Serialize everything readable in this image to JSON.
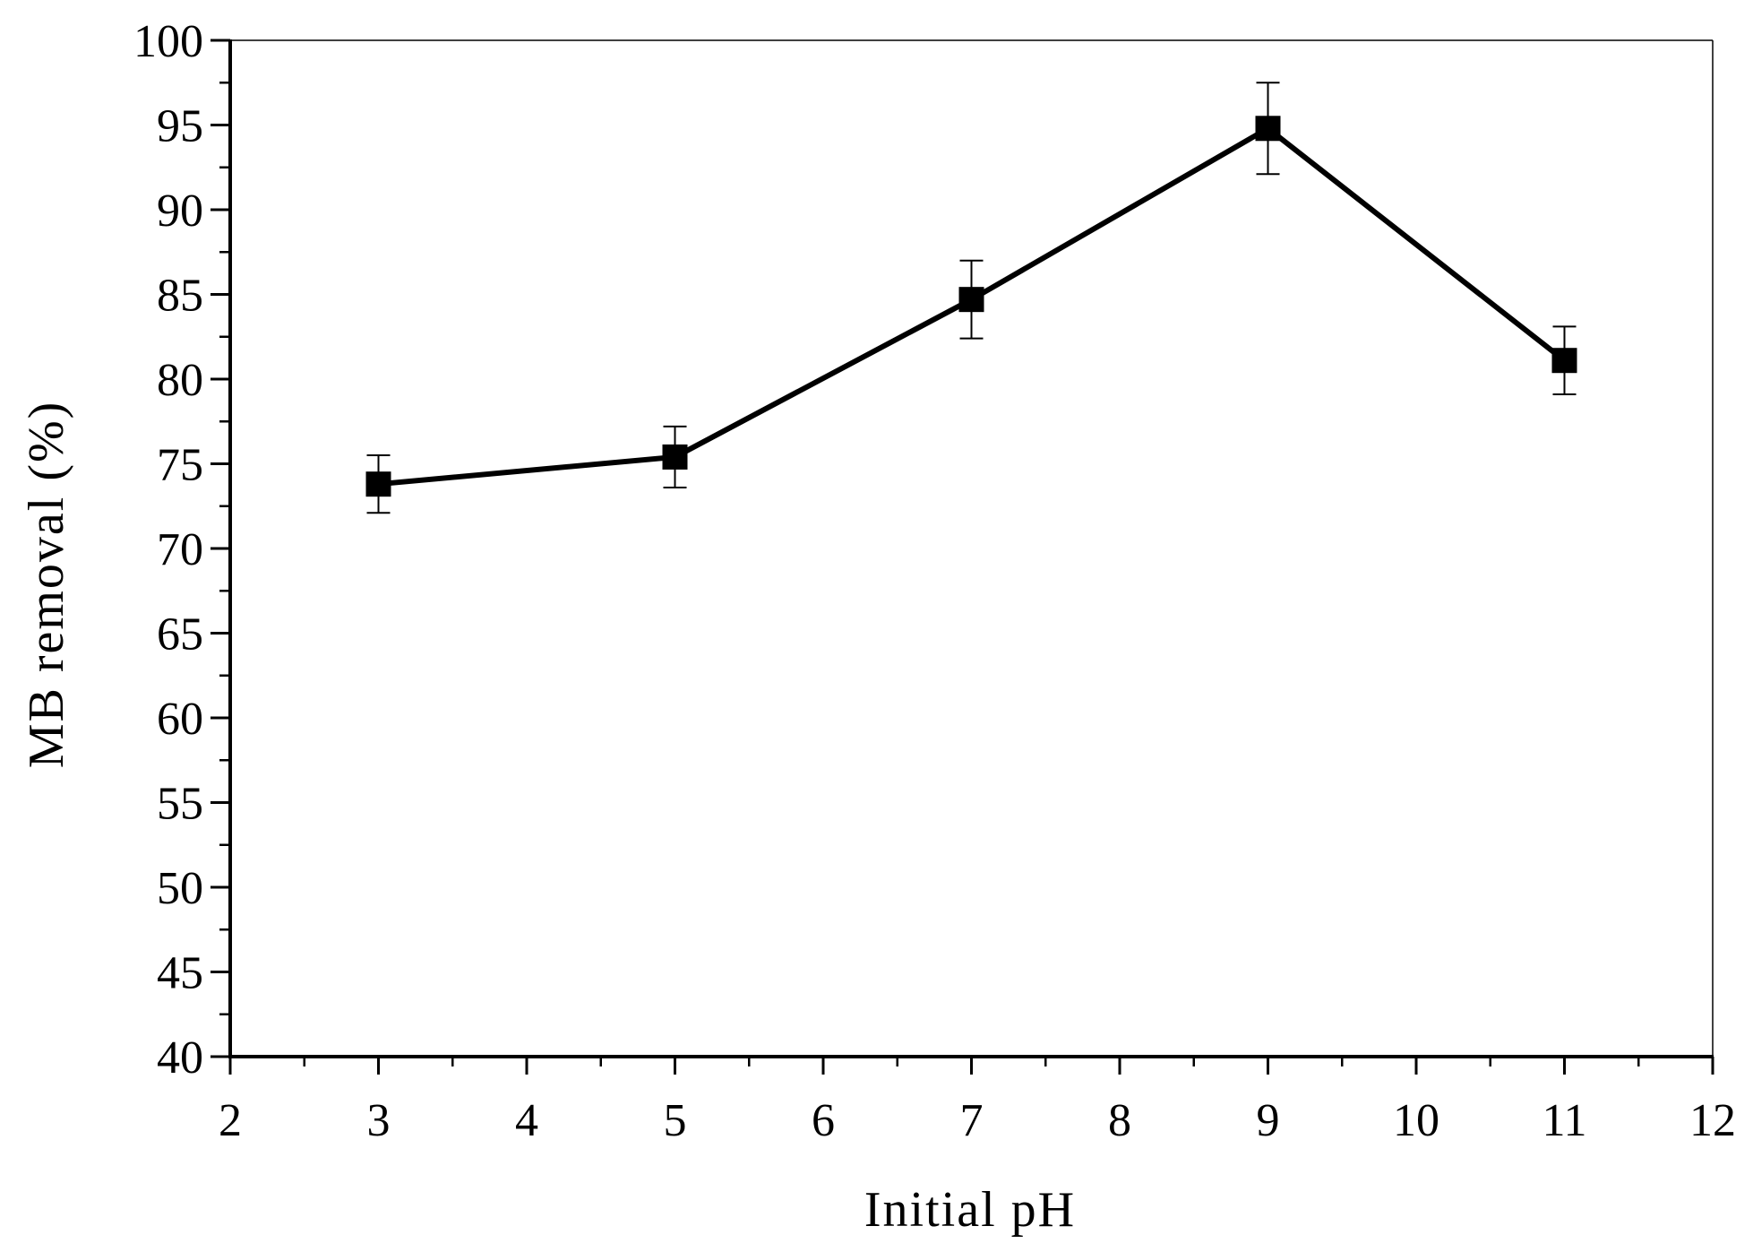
{
  "chart_data": {
    "type": "line",
    "title": "",
    "xlabel": "Initial pH",
    "ylabel": "MB removal (%)",
    "xlim": [
      2,
      12
    ],
    "ylim": [
      40,
      100
    ],
    "x_ticks": [
      2,
      3,
      4,
      5,
      6,
      7,
      8,
      9,
      10,
      11,
      12
    ],
    "y_ticks": [
      40,
      45,
      50,
      55,
      60,
      65,
      70,
      75,
      80,
      85,
      90,
      95,
      100
    ],
    "grid": false,
    "legend": "none",
    "series": [
      {
        "x": [
          3,
          5,
          7,
          9,
          11
        ],
        "y": [
          73.8,
          75.4,
          84.7,
          94.8,
          81.1
        ],
        "error": [
          1.7,
          1.8,
          2.3,
          2.7,
          2.0
        ],
        "marker": "square",
        "color": "#000000"
      }
    ]
  }
}
